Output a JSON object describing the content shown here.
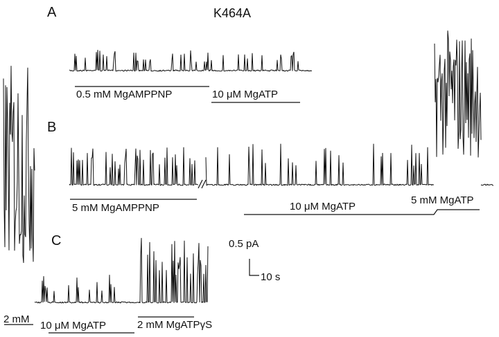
{
  "figure": {
    "title": "K464A",
    "panels": {
      "A": {
        "label": "A",
        "solutions": [
          "0.5 mM MgAMPPNP",
          "10 μM MgATP"
        ]
      },
      "B": {
        "label": "B",
        "solutions": [
          "5 mM MgAMPPNP",
          "10 μM MgATP",
          "5 mM MgATP"
        ]
      },
      "C": {
        "label": "C",
        "solutions": [
          "2 mM",
          "10 μM MgATP",
          "2 mM MgATPγS"
        ]
      }
    },
    "scale_bar": {
      "current": "0.5 pA",
      "time": "10 s"
    }
  }
}
